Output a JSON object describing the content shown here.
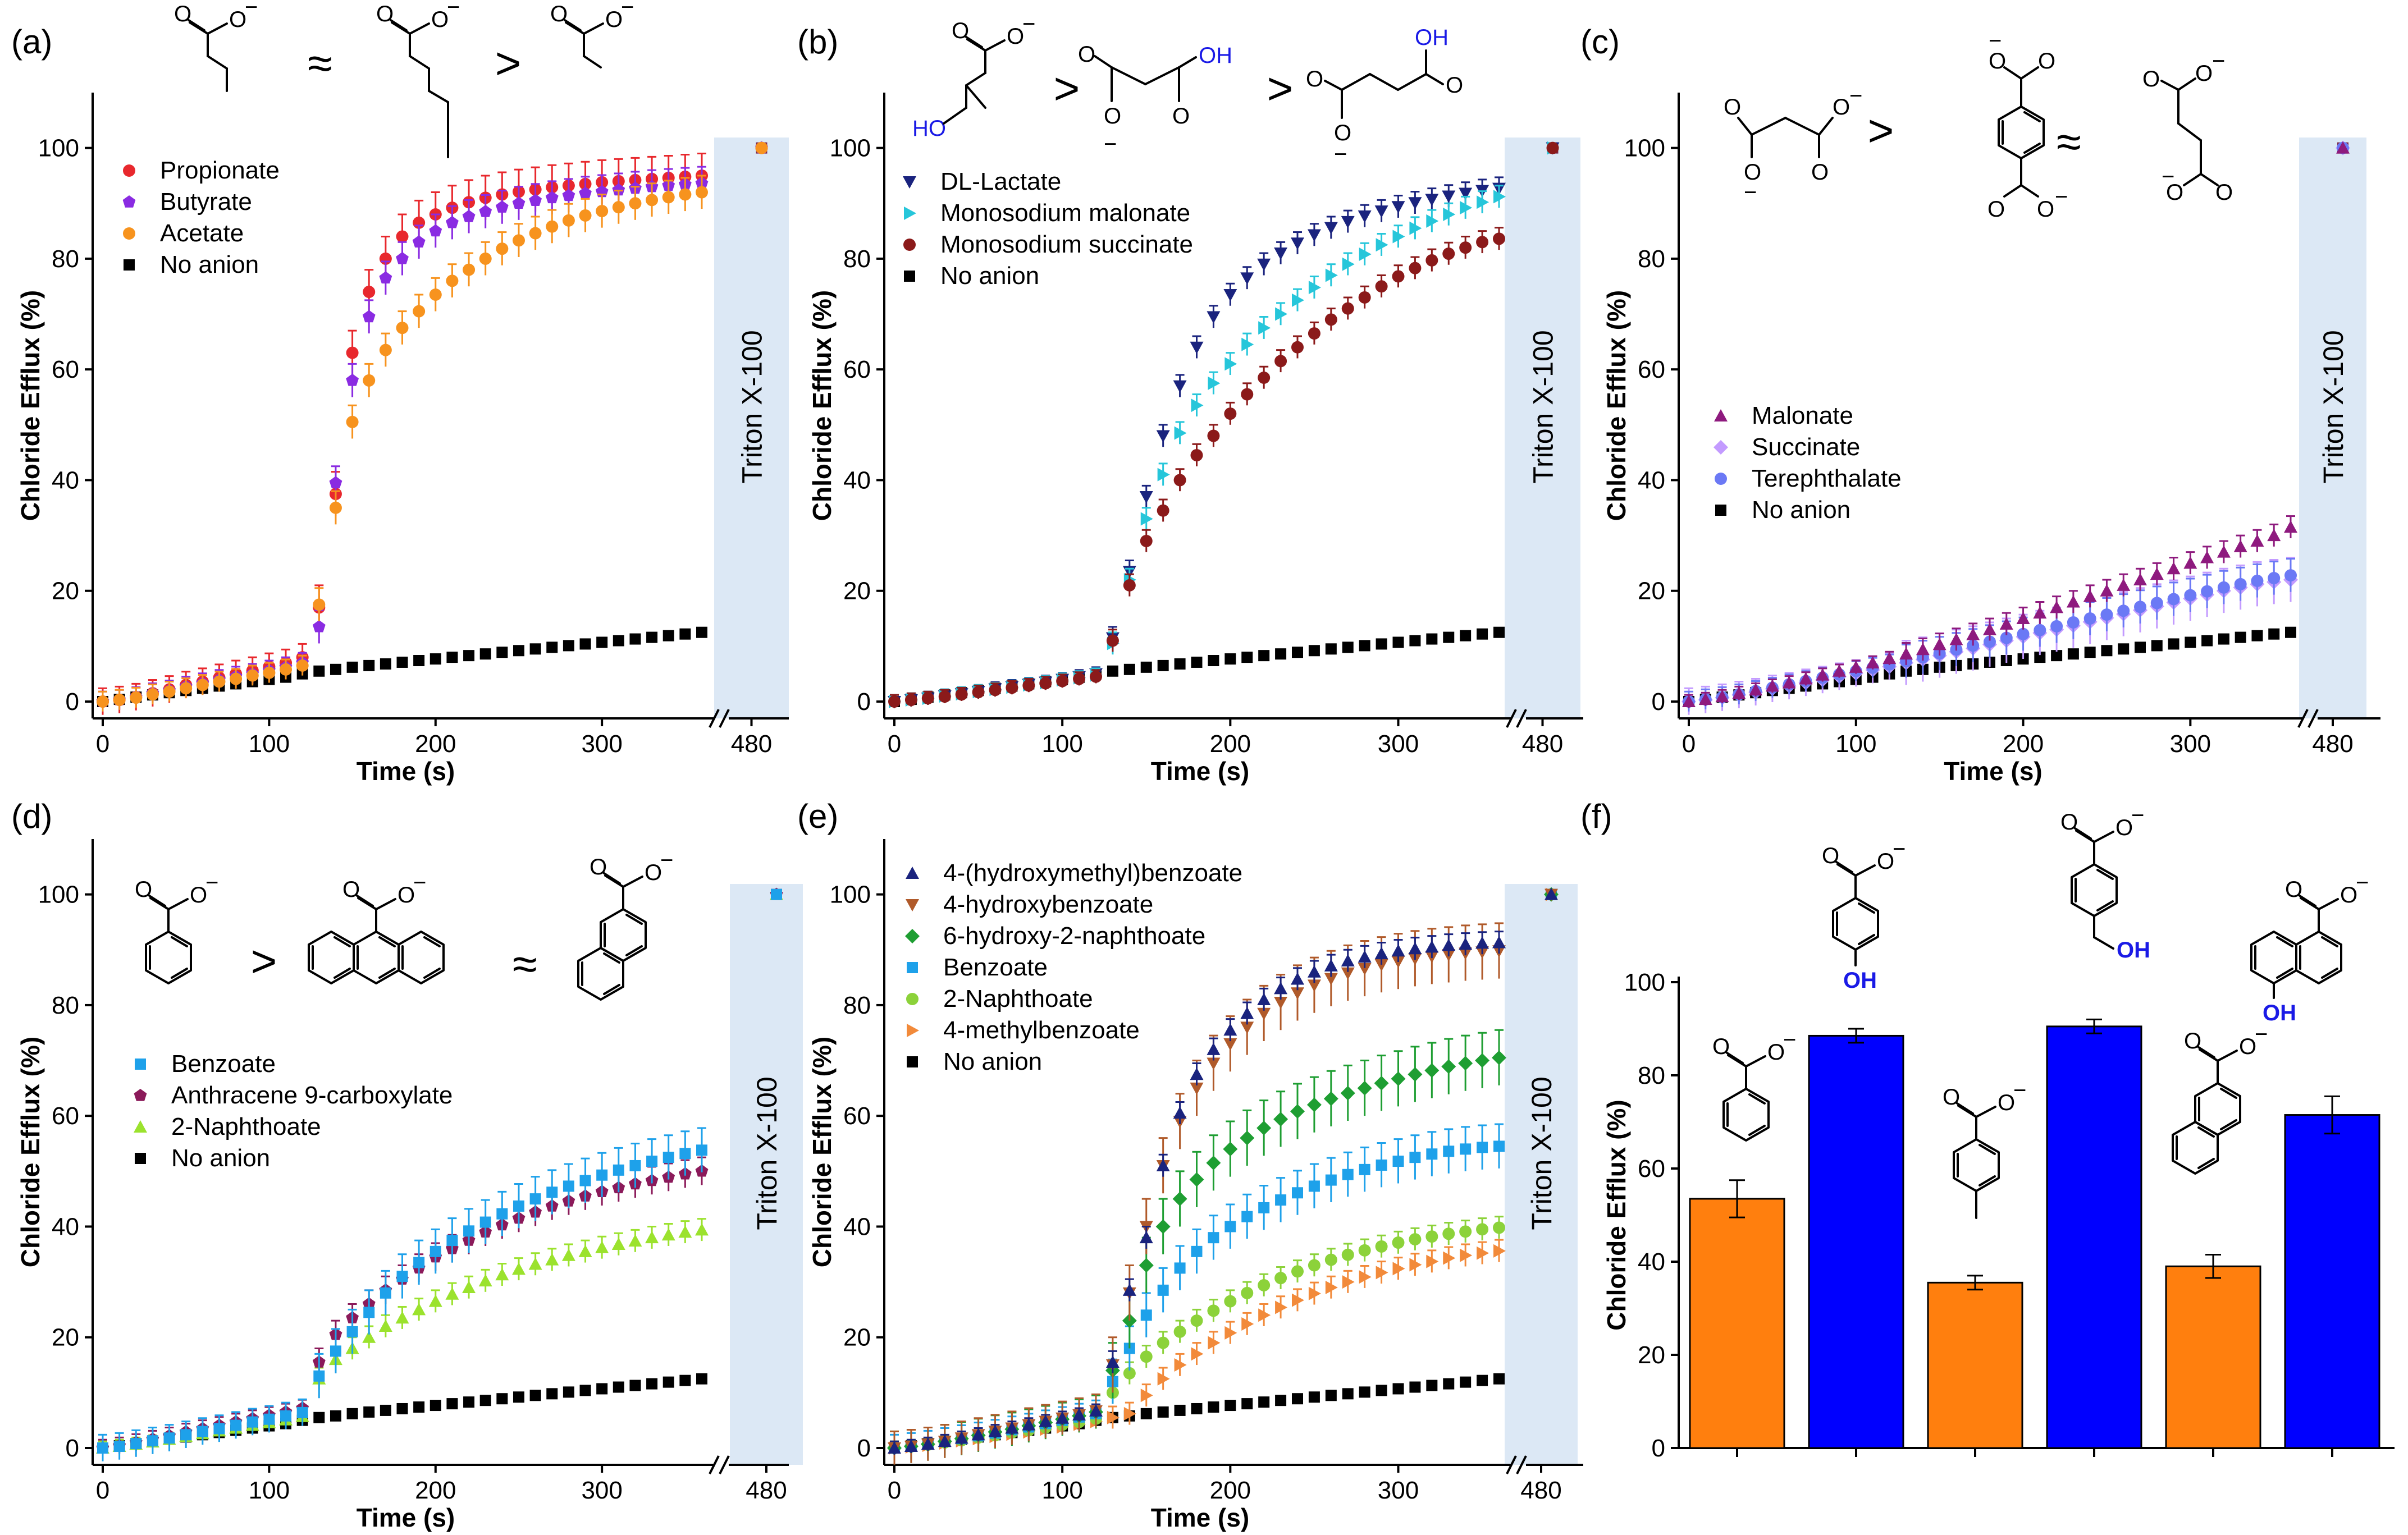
{
  "chart_data": [
    {
      "id": "a",
      "type": "scatter",
      "panel_label": "(a)",
      "xlabel": "Time (s)",
      "ylabel": "Chloride Efflux (%)",
      "xlim": [
        0,
        360
      ],
      "ylim": [
        0,
        110
      ],
      "xticks": [
        "0",
        "100",
        "200",
        "300"
      ],
      "yticks": [
        "0",
        "20",
        "40",
        "60",
        "80",
        "100"
      ],
      "break_tick": "480",
      "triton_label": "Triton X-100",
      "order_symbols": [
        "≈",
        ">"
      ],
      "legend": [
        "Propionate",
        "Butyrate",
        "Acetate",
        "No anion"
      ],
      "series": [
        {
          "name": "Propionate",
          "color": "#e8282d",
          "marker": "circle",
          "err": 4,
          "final": 100,
          "values": [
            0,
            0.3,
            0.8,
            1.5,
            2.2,
            3.0,
            3.6,
            4.3,
            5.0,
            5.6,
            6.3,
            7.0,
            8.0,
            17,
            37.5,
            63,
            74,
            80,
            84,
            86.5,
            88,
            89.2,
            90.2,
            91,
            91.6,
            92.1,
            92.5,
            92.9,
            93.2,
            93.5,
            93.8,
            94.0,
            94.2,
            94.4,
            94.6,
            94.8,
            95.0
          ]
        },
        {
          "name": "Butyrate",
          "color": "#8a2be2",
          "marker": "pentagon",
          "err": 3,
          "final": 100,
          "values": [
            0,
            0.3,
            0.8,
            1.5,
            2.0,
            2.7,
            3.3,
            3.9,
            4.5,
            5.0,
            5.6,
            6.2,
            7.0,
            13.5,
            39.5,
            58,
            69.5,
            76.5,
            80,
            83,
            85,
            86.5,
            87.6,
            88.5,
            89.3,
            90,
            90.5,
            91,
            91.4,
            91.8,
            92.1,
            92.4,
            92.7,
            93,
            93.2,
            93.4,
            93.6
          ]
        },
        {
          "name": "Acetate",
          "color": "#f7931e",
          "marker": "circle",
          "err": 3,
          "final": 100,
          "values": [
            0,
            0.3,
            0.7,
            1.3,
            1.8,
            2.4,
            3.0,
            3.6,
            4.1,
            4.7,
            5.2,
            5.8,
            6.5,
            17.5,
            35,
            50.5,
            58,
            63.5,
            67.5,
            70.5,
            73.5,
            76,
            78,
            80,
            81.8,
            83.3,
            84.6,
            85.8,
            86.9,
            87.8,
            88.6,
            89.3,
            90,
            90.6,
            91.1,
            91.6,
            92
          ]
        }
      ]
    },
    {
      "id": "b",
      "type": "scatter",
      "panel_label": "(b)",
      "xlabel": "Time (s)",
      "ylabel": "Chloride Efflux (%)",
      "xlim": [
        0,
        360
      ],
      "ylim": [
        0,
        110
      ],
      "xticks": [
        "0",
        "100",
        "200",
        "300"
      ],
      "yticks": [
        "0",
        "20",
        "40",
        "60",
        "80",
        "100"
      ],
      "break_tick": "480",
      "triton_label": "Triton X-100",
      "order_symbols": [
        ">",
        ">"
      ],
      "legend": [
        "DL-Lactate",
        "Monosodium malonate",
        "Monosodium succinate",
        "No anion"
      ],
      "series": [
        {
          "name": "DL-Lactate",
          "color": "#1a237e",
          "marker": "tri-down",
          "err": 2,
          "final": 100,
          "values": [
            0,
            0.3,
            0.6,
            1.0,
            1.4,
            1.8,
            2.3,
            2.7,
            3.1,
            3.5,
            4.0,
            4.5,
            5.0,
            11.5,
            23.5,
            37,
            48,
            57,
            64,
            69.5,
            73.5,
            76.5,
            79,
            81,
            82.8,
            84.3,
            85.6,
            86.7,
            87.7,
            88.6,
            89.4,
            90.1,
            90.7,
            91.3,
            91.8,
            92.3,
            92.7
          ]
        },
        {
          "name": "Monosodium malonate",
          "color": "#26c6da",
          "marker": "tri-right",
          "err": 2,
          "final": 100,
          "values": [
            0,
            0.3,
            0.6,
            1.0,
            1.4,
            1.8,
            2.2,
            2.6,
            3.0,
            3.4,
            3.9,
            4.3,
            4.8,
            10.5,
            22,
            33,
            41,
            48.5,
            53.5,
            57.5,
            61,
            64.5,
            67.5,
            70,
            72.5,
            74.8,
            77,
            79,
            80.8,
            82.5,
            84,
            85.5,
            86.8,
            88,
            89.2,
            90.2,
            91.2
          ]
        },
        {
          "name": "Monosodium succinate",
          "color": "#8b1a1a",
          "marker": "circle",
          "err": 2,
          "final": 100,
          "values": [
            0,
            0.3,
            0.6,
            0.9,
            1.3,
            1.7,
            2.1,
            2.5,
            2.9,
            3.3,
            3.7,
            4.1,
            4.5,
            11,
            21,
            29,
            34.5,
            40,
            44.5,
            48,
            52,
            55.5,
            58.5,
            61.5,
            64,
            66.5,
            69,
            71,
            73,
            75,
            76.8,
            78.3,
            79.7,
            80.9,
            82,
            83,
            83.6
          ]
        }
      ]
    },
    {
      "id": "c",
      "type": "scatter",
      "panel_label": "(c)",
      "xlabel": "Time (s)",
      "ylabel": "Chloride Efflux (%)",
      "xlim": [
        0,
        360
      ],
      "ylim": [
        0,
        110
      ],
      "xticks": [
        "0",
        "100",
        "200",
        "300"
      ],
      "yticks": [
        "0",
        "20",
        "40",
        "60",
        "80",
        "100"
      ],
      "break_tick": "480",
      "triton_label": "Triton X-100",
      "order_symbols": [
        ">",
        "≈"
      ],
      "legend": [
        "Malonate",
        "Succinate",
        "Terephthalate",
        "No anion"
      ],
      "series": [
        {
          "name": "Succinate",
          "color": "#c39bff",
          "marker": "diamond",
          "err": 4,
          "final": 100,
          "values": [
            0,
            0.3,
            0.7,
            1.2,
            1.7,
            2.3,
            2.8,
            3.4,
            3.9,
            4.5,
            5.1,
            5.7,
            6.3,
            7.0,
            7.6,
            8.3,
            9.0,
            9.6,
            10.3,
            11.0,
            11.7,
            12.4,
            13.0,
            13.7,
            14.4,
            15.1,
            15.8,
            16.5,
            17.2,
            17.9,
            18.6,
            19.3,
            20.0,
            20.6,
            21.2,
            21.6,
            22.0
          ]
        },
        {
          "name": "Terephthalate",
          "color": "#6b79f5",
          "marker": "circle",
          "err": 3,
          "final": 100,
          "values": [
            0,
            0.4,
            0.8,
            1.3,
            1.9,
            2.5,
            3.1,
            3.7,
            4.3,
            4.9,
            5.5,
            6.1,
            6.7,
            7.3,
            8.0,
            8.7,
            9.4,
            10.1,
            10.8,
            11.5,
            12.2,
            12.9,
            13.6,
            14.3,
            15.0,
            15.7,
            16.4,
            17.1,
            17.8,
            18.5,
            19.2,
            19.9,
            20.6,
            21.2,
            21.8,
            22.3,
            22.8
          ]
        },
        {
          "name": "Malonate",
          "color": "#8e1a7e",
          "marker": "triangle",
          "err": 2,
          "final": 100,
          "values": [
            0,
            0.4,
            0.9,
            1.5,
            2.1,
            2.8,
            3.4,
            4.1,
            4.8,
            5.5,
            6.2,
            7.0,
            7.8,
            8.6,
            9.4,
            10.3,
            11.2,
            12.1,
            13.0,
            14.0,
            15.0,
            16.0,
            17.0,
            18.0,
            19.0,
            20.0,
            21.0,
            22.0,
            23.0,
            24.0,
            25.0,
            26.0,
            27.0,
            28.0,
            29.0,
            30.0,
            31.5
          ]
        }
      ]
    },
    {
      "id": "d",
      "type": "scatter",
      "panel_label": "(d)",
      "xlabel": "Time (s)",
      "ylabel": "Chloride Efflux (%)",
      "xlim": [
        0,
        360
      ],
      "ylim": [
        0,
        110
      ],
      "xticks": [
        "0",
        "100",
        "200",
        "300"
      ],
      "yticks": [
        "0",
        "20",
        "40",
        "60",
        "80",
        "100"
      ],
      "break_tick": "480",
      "triton_label": "Triton X-100",
      "order_symbols": [
        ">",
        "≈"
      ],
      "legend": [
        "Benzoate",
        "Anthracene 9-carboxylate",
        "2-Naphthoate",
        "No anion"
      ],
      "series": [
        {
          "name": "2-Naphthoate",
          "color": "#9be22d",
          "marker": "triangle",
          "err": 2,
          "final": 100,
          "values": [
            0,
            0.3,
            0.7,
            1.1,
            1.6,
            2.1,
            2.6,
            3.1,
            3.6,
            4.1,
            4.6,
            5.1,
            5.7,
            12.5,
            16,
            18,
            20,
            22,
            23.5,
            25,
            26.5,
            27.8,
            29,
            30.2,
            31.3,
            32.3,
            33.2,
            34,
            34.8,
            35.5,
            36.2,
            36.8,
            37.4,
            38,
            38.5,
            39,
            39.4
          ]
        },
        {
          "name": "Anthracene 9-carboxylate",
          "color": "#8b1a5a",
          "marker": "pentagon",
          "err": 2.5,
          "final": 100,
          "values": [
            0,
            0.4,
            1.0,
            1.6,
            2.2,
            2.9,
            3.5,
            4.1,
            4.7,
            5.3,
            5.9,
            6.5,
            7.2,
            15.5,
            20.5,
            23.5,
            26,
            28.5,
            30.5,
            32.5,
            34.5,
            36,
            37.5,
            39,
            40.3,
            41.5,
            42.6,
            43.7,
            44.6,
            45.5,
            46.3,
            47,
            47.7,
            48.3,
            48.9,
            49.5,
            50
          ]
        },
        {
          "name": "Benzoate",
          "color": "#1ea1ea",
          "marker": "square",
          "err": 4,
          "final": 100,
          "values": [
            0,
            0.3,
            0.8,
            1.3,
            1.8,
            2.4,
            3.0,
            3.5,
            4.1,
            4.7,
            5.2,
            5.8,
            6.4,
            13,
            17.5,
            21,
            24.5,
            28,
            31,
            33.5,
            35.5,
            37.5,
            39.2,
            40.8,
            42.3,
            43.7,
            45,
            46.2,
            47.3,
            48.3,
            49.3,
            50.2,
            51,
            51.8,
            52.5,
            53.2,
            53.8
          ]
        }
      ]
    },
    {
      "id": "e",
      "type": "scatter",
      "panel_label": "(e)",
      "xlabel": "Time (s)",
      "ylabel": "Chloride Efflux (%)",
      "xlim": [
        0,
        360
      ],
      "ylim": [
        0,
        110
      ],
      "xticks": [
        "0",
        "100",
        "200",
        "300"
      ],
      "yticks": [
        "0",
        "20",
        "40",
        "60",
        "80",
        "100"
      ],
      "break_tick": "480",
      "triton_label": "Triton X-100",
      "legend": [
        "4-(hydroxymethyl)benzoate",
        "4-hydroxybenzoate",
        "6-hydroxy-2-naphthoate",
        "Benzoate",
        "2-Naphthoate",
        "4-methylbenzoate",
        "No anion"
      ],
      "series": [
        {
          "name": "4-methylbenzoate",
          "color": "#f28a3a",
          "marker": "tri-right",
          "err": 2,
          "final": 100,
          "values": [
            0,
            0.2,
            0.5,
            0.9,
            1.3,
            1.7,
            2.1,
            2.5,
            2.9,
            3.4,
            3.8,
            4.3,
            4.8,
            5.5,
            6.2,
            9.5,
            12.5,
            15,
            17,
            19,
            20.8,
            22.4,
            24,
            25.4,
            26.7,
            27.9,
            29,
            30,
            30.9,
            31.7,
            32.4,
            33.1,
            33.7,
            34.3,
            34.8,
            35.2,
            35.6
          ]
        },
        {
          "name": "2-Naphthoate",
          "color": "#8cd23a",
          "marker": "circle",
          "err": 2,
          "final": 100,
          "values": [
            0,
            0.3,
            0.6,
            1.0,
            1.4,
            1.9,
            2.3,
            2.8,
            3.2,
            3.7,
            4.2,
            4.7,
            5.3,
            10,
            13.5,
            16.5,
            19,
            21,
            23,
            24.8,
            26.5,
            28,
            29.4,
            30.7,
            31.9,
            33,
            34,
            34.9,
            35.7,
            36.4,
            37.1,
            37.7,
            38.2,
            38.7,
            39.1,
            39.5,
            39.8
          ]
        },
        {
          "name": "Benzoate",
          "color": "#1ea1ea",
          "marker": "square",
          "err": 4,
          "final": 100,
          "values": [
            0,
            0.3,
            0.7,
            1.2,
            1.7,
            2.2,
            2.7,
            3.3,
            3.8,
            4.4,
            5.0,
            5.6,
            6.2,
            12,
            18,
            24,
            28.5,
            32.5,
            35.5,
            38,
            40,
            41.8,
            43.4,
            44.8,
            46.1,
            47.3,
            48.4,
            49.4,
            50.3,
            51.1,
            51.8,
            52.5,
            53.1,
            53.6,
            54,
            54.3,
            54.5
          ]
        },
        {
          "name": "6-hydroxy-2-naphthoate",
          "color": "#1e9e32",
          "marker": "diamond",
          "err": 5,
          "final": 100,
          "values": [
            0,
            0.3,
            0.7,
            1.2,
            1.7,
            2.3,
            2.9,
            3.4,
            4.0,
            4.6,
            5.2,
            5.8,
            6.5,
            14,
            23,
            33,
            40,
            45,
            48.5,
            51.5,
            54,
            56,
            57.8,
            59.4,
            60.8,
            62,
            63.1,
            64.1,
            65,
            65.9,
            66.7,
            67.5,
            68.2,
            68.9,
            69.5,
            70,
            70.5
          ]
        },
        {
          "name": "4-hydroxybenzoate",
          "color": "#b05a2a",
          "marker": "tri-down",
          "err": 5,
          "final": 100,
          "values": [
            0,
            0.3,
            0.7,
            1.2,
            1.8,
            2.4,
            3.0,
            3.6,
            4.2,
            4.8,
            5.4,
            6.0,
            6.7,
            15,
            28,
            40,
            51,
            59,
            65,
            69.5,
            73,
            76,
            78.5,
            80.5,
            82.2,
            83.6,
            84.8,
            85.8,
            86.6,
            87.3,
            87.9,
            88.4,
            88.8,
            89.1,
            89.4,
            89.6,
            89.8
          ]
        },
        {
          "name": "4-(hydroxymethyl)benzoate",
          "color": "#1a237e",
          "marker": "triangle",
          "err": 2,
          "final": 100,
          "values": [
            0,
            0.3,
            0.7,
            1.2,
            1.8,
            2.4,
            3.0,
            3.6,
            4.2,
            4.8,
            5.4,
            6.0,
            6.7,
            15.5,
            28.5,
            38,
            51,
            60.5,
            67.5,
            72,
            75.5,
            78.5,
            81,
            83,
            84.7,
            86,
            87.1,
            88,
            88.7,
            89.3,
            89.8,
            90.2,
            90.5,
            90.8,
            91,
            91.2,
            91.3
          ]
        }
      ]
    },
    {
      "id": "f",
      "type": "bar",
      "panel_label": "(f)",
      "ylabel": "Chloride Efflux (%)",
      "ylim": [
        0,
        100
      ],
      "yticks": [
        "0",
        "20",
        "40",
        "60",
        "80",
        "100"
      ],
      "values": [
        53.5,
        88.5,
        35.5,
        90.5,
        39,
        71.5
      ],
      "errors": [
        4,
        1.5,
        1.5,
        1.5,
        2.5,
        4
      ],
      "colors": [
        "#ff7f0e",
        "#0000ff",
        "#ff7f0e",
        "#0000ff",
        "#ff7f0e",
        "#0000ff"
      ],
      "oh_labels": [
        "OH",
        "OH",
        "OH"
      ]
    }
  ],
  "common": {
    "no_anion_name": "No anion",
    "no_anion_color": "#000000",
    "no_anion_values": [
      0,
      0.4,
      0.8,
      1.2,
      1.6,
      2.0,
      2.4,
      2.8,
      3.2,
      3.6,
      4.0,
      4.4,
      5.0,
      5.5,
      5.8,
      6.2,
      6.5,
      6.8,
      7.1,
      7.4,
      7.7,
      8.0,
      8.3,
      8.6,
      8.9,
      9.2,
      9.5,
      9.8,
      10.1,
      10.4,
      10.7,
      11.0,
      11.3,
      11.6,
      11.9,
      12.2,
      12.5
    ],
    "chem_text": {
      "O": "O",
      "anion": "−",
      "OH": "OH",
      "HO": "HO"
    }
  }
}
